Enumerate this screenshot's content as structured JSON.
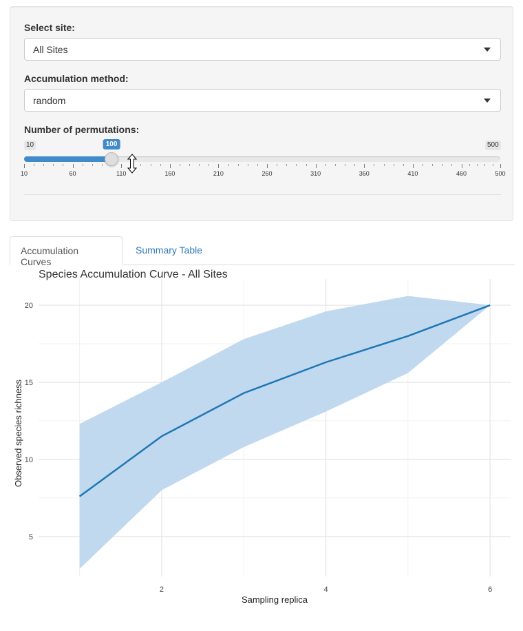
{
  "controls": {
    "site_label": "Select site:",
    "site_value": "All Sites",
    "method_label": "Accumulation method:",
    "method_value": "random",
    "permutations_label": "Number of permutations:",
    "slider": {
      "min": 10,
      "max": 500,
      "value": 100,
      "min_label": "10",
      "max_label": "500",
      "value_label": "100",
      "ticks": [
        "10",
        "60",
        "110",
        "160",
        "210",
        "260",
        "310",
        "360",
        "410",
        "460",
        "500"
      ]
    }
  },
  "tabs": [
    {
      "label": "Accumulation Curves",
      "active": true
    },
    {
      "label": "Summary Table",
      "active": false
    }
  ],
  "chart_data": {
    "type": "line",
    "title": "Species Accumulation Curve - All Sites",
    "xlabel": "Sampling replica",
    "ylabel": "Observed species richness",
    "x": [
      1,
      2,
      3,
      4,
      5,
      6
    ],
    "series": [
      {
        "values": [
          7.6,
          11.5,
          14.3,
          16.3,
          18.0,
          20.0
        ]
      }
    ],
    "band_upper": [
      12.3,
      15.0,
      17.8,
      19.6,
      20.6,
      20.0
    ],
    "band_lower": [
      2.9,
      8.0,
      10.8,
      13.1,
      15.6,
      20.0
    ],
    "xlim": [
      0.5,
      6.25
    ],
    "ylim": [
      2.4,
      21.7
    ],
    "xticks": [
      2,
      4,
      6
    ],
    "yticks": [
      5,
      10,
      15,
      20
    ],
    "grid": true,
    "line_color": "#1f77b4",
    "band_color": "#bdd7ee"
  }
}
